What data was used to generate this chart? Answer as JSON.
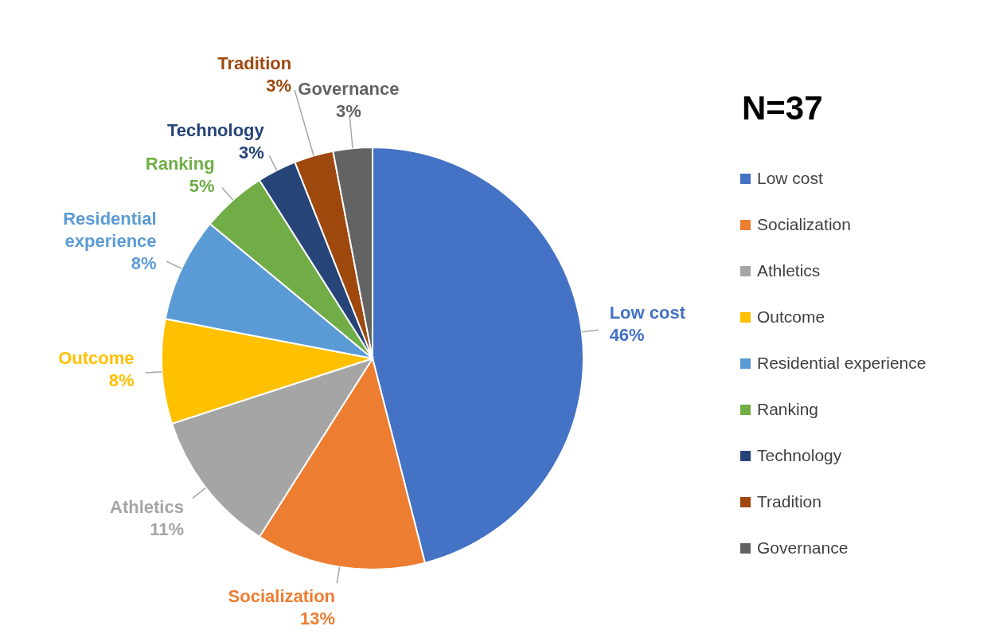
{
  "chart_data": {
    "type": "pie",
    "title": "N=37",
    "categories": [
      "Low cost",
      "Socialization",
      "Athletics",
      "Outcome",
      "Residential experience",
      "Ranking",
      "Technology",
      "Tradition",
      "Governance"
    ],
    "values": [
      46,
      13,
      11,
      8,
      8,
      5,
      3,
      3,
      3
    ],
    "value_labels": [
      "46%",
      "13%",
      "11%",
      "8%",
      "8%",
      "5%",
      "3%",
      "3%",
      "3%"
    ],
    "colors": [
      "#4472c4",
      "#ed7d31",
      "#a5a5a5",
      "#ffc000",
      "#5b9bd5",
      "#70ad47",
      "#264478",
      "#9e480e",
      "#636363"
    ],
    "legend": "right"
  }
}
